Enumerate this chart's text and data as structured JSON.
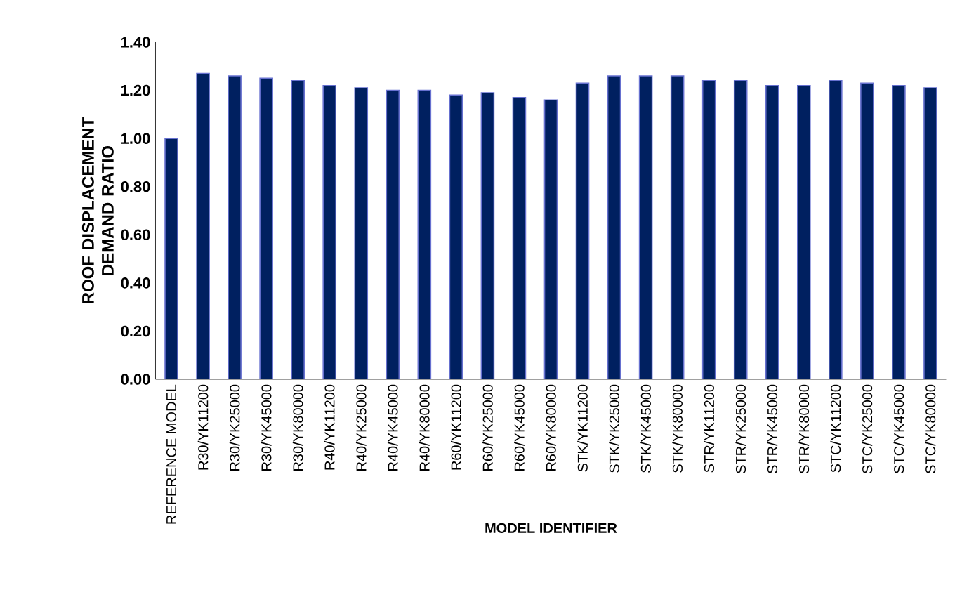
{
  "chart_data": {
    "type": "bar",
    "xlabel": "MODEL IDENTIFIER",
    "ylabel": "ROOF DISPLACEMENT DEMAND RATIO",
    "categories": [
      "REFERENCE MODEL",
      "R30/YK11200",
      "R30/YK25000",
      "R30/YK45000",
      "R30/YK80000",
      "R40/YK11200",
      "R40/YK25000",
      "R40/YK45000",
      "R40/YK80000",
      "R60/YK11200",
      "R60/YK25000",
      "R60/YK45000",
      "R60/YK80000",
      "STK/YK11200",
      "STK/YK25000",
      "STK/YK45000",
      "STK/YK80000",
      "STR/YK11200",
      "STR/YK25000",
      "STR/YK45000",
      "STR/YK80000",
      "STC/YK11200",
      "STC/YK25000",
      "STC/YK45000",
      "STC/YK80000"
    ],
    "values": [
      1.0,
      1.27,
      1.26,
      1.25,
      1.24,
      1.22,
      1.21,
      1.2,
      1.2,
      1.18,
      1.19,
      1.17,
      1.16,
      1.23,
      1.26,
      1.26,
      1.26,
      1.24,
      1.24,
      1.22,
      1.22,
      1.24,
      1.23,
      1.22,
      1.21
    ],
    "color": "#002060",
    "ylim": [
      0,
      1.4
    ],
    "yticks": [
      {
        "value": 0,
        "label": "0.00"
      },
      {
        "value": 0.2,
        "label": "0.20"
      },
      {
        "value": 0.4,
        "label": "0.40"
      },
      {
        "value": 0.6,
        "label": "0.60"
      },
      {
        "value": 0.8,
        "label": "0.80"
      },
      {
        "value": 1.0,
        "label": "1.00"
      },
      {
        "value": 1.2,
        "label": "1.20"
      },
      {
        "value": 1.4,
        "label": "1.40"
      }
    ]
  }
}
